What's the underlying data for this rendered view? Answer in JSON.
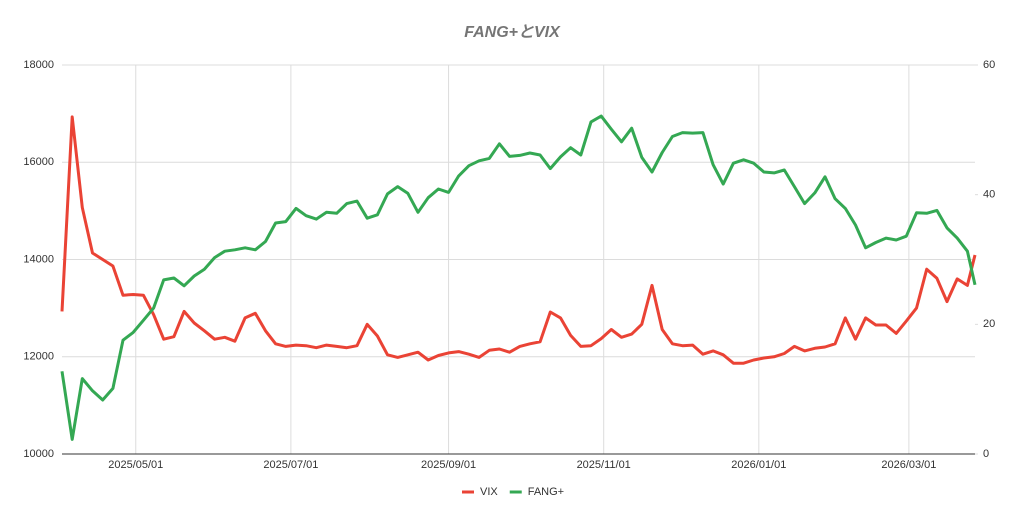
{
  "chart_data": {
    "type": "line",
    "title": "FANG+とVIX",
    "x": [
      "2025/04/02",
      "2025/04/06",
      "2025/04/10",
      "2025/04/14",
      "2025/04/18",
      "2025/04/22",
      "2025/04/26",
      "2025/04/30",
      "2025/05/04",
      "2025/05/08",
      "2025/05/12",
      "2025/05/16",
      "2025/05/20",
      "2025/05/24",
      "2025/05/28",
      "2025/06/01",
      "2025/06/05",
      "2025/06/09",
      "2025/06/13",
      "2025/06/17",
      "2025/06/21",
      "2025/06/25",
      "2025/06/29",
      "2025/07/03",
      "2025/07/07",
      "2025/07/11",
      "2025/07/15",
      "2025/07/19",
      "2025/07/23",
      "2025/07/27",
      "2025/07/31",
      "2025/08/04",
      "2025/08/08",
      "2025/08/12",
      "2025/08/16",
      "2025/08/20",
      "2025/08/24",
      "2025/08/28",
      "2025/09/01",
      "2025/09/05",
      "2025/09/09",
      "2025/09/13",
      "2025/09/17",
      "2025/09/21",
      "2025/09/25",
      "2025/09/29",
      "2025/10/03",
      "2025/10/07",
      "2025/10/11",
      "2025/10/15",
      "2025/10/19",
      "2025/10/23",
      "2025/10/27",
      "2025/10/31",
      "2025/11/04",
      "2025/11/08",
      "2025/11/12",
      "2025/11/16",
      "2025/11/20",
      "2025/11/24",
      "2025/11/28",
      "2025/12/02",
      "2025/12/06",
      "2025/12/10",
      "2025/12/14",
      "2025/12/18",
      "2025/12/22",
      "2025/12/26",
      "2025/12/30",
      "2026/01/03",
      "2026/01/07",
      "2026/01/11",
      "2026/01/15",
      "2026/01/19",
      "2026/01/23",
      "2026/01/27",
      "2026/01/31",
      "2026/02/04",
      "2026/02/08",
      "2026/02/12",
      "2026/02/16",
      "2026/02/20",
      "2026/02/24",
      "2026/02/28",
      "2026/03/04",
      "2026/03/08",
      "2026/03/12",
      "2026/03/16",
      "2026/03/20",
      "2026/03/24",
      "2026/03/27"
    ],
    "series": [
      {
        "name": "VIX",
        "color": "#ea4335",
        "axis": "y2",
        "values": [
          22,
          52,
          38,
          31,
          30,
          29,
          24.5,
          24.6,
          24.5,
          21.5,
          17.7,
          18.1,
          22,
          20.2,
          19,
          17.7,
          18,
          17.4,
          21,
          21.7,
          19,
          17,
          16.6,
          16.8,
          16.7,
          16.4,
          16.8,
          16.6,
          16.4,
          16.7,
          20,
          18.2,
          15.3,
          14.9,
          15.3,
          15.7,
          14.5,
          15.2,
          15.6,
          15.8,
          15.4,
          14.9,
          16,
          16.2,
          15.7,
          16.6,
          17,
          17.3,
          21.9,
          21,
          18.3,
          16.6,
          16.7,
          17.8,
          19.2,
          18,
          18.5,
          20,
          26,
          19.2,
          17,
          16.7,
          16.8,
          15.4,
          15.9,
          15.3,
          14,
          14,
          14.5,
          14.8,
          15,
          15.5,
          16.6,
          15.9,
          16.3,
          16.5,
          17,
          21,
          17.7,
          21,
          19.9,
          19.9,
          18.6,
          20.5,
          22.5,
          28.5,
          27.1,
          23.5,
          27,
          26,
          30.7
        ]
      },
      {
        "name": "FANG+",
        "color": "#34a853",
        "values": [
          11700,
          10300,
          11550,
          11300,
          11110,
          11350,
          12340,
          12500,
          12750,
          13000,
          13580,
          13620,
          13460,
          13660,
          13800,
          14040,
          14170,
          14200,
          14240,
          14200,
          14370,
          14750,
          14780,
          15050,
          14900,
          14830,
          14970,
          14950,
          15150,
          15200,
          14850,
          14920,
          15350,
          15500,
          15360,
          14970,
          15270,
          15450,
          15380,
          15720,
          15930,
          16030,
          16080,
          16380,
          16120,
          16140,
          16190,
          16150,
          15870,
          16110,
          16300,
          16150,
          16830,
          16950,
          16680,
          16420,
          16700,
          16100,
          15800,
          16200,
          16530,
          16610,
          16600,
          16610,
          15950,
          15550,
          15980,
          16050,
          15980,
          15800,
          15780,
          15840,
          15500,
          15150,
          15370,
          15700,
          15250,
          15050,
          14710,
          14240,
          14350,
          14440,
          14400,
          14480,
          14960,
          14950,
          15010,
          14650,
          14440,
          14170,
          13480
        ]
      }
    ],
    "xlim": [
      "2025/04/02",
      "2026/03/27"
    ],
    "xticks": [
      "2025/05/01",
      "2025/07/01",
      "2025/09/01",
      "2025/11/01",
      "2026/01/01",
      "2026/03/01"
    ],
    "ylim": [
      10000,
      18000
    ],
    "yticks": [
      10000,
      12000,
      14000,
      16000,
      18000
    ],
    "y2lim": [
      0,
      60
    ],
    "y2ticks": [
      0,
      20,
      40,
      60
    ],
    "grid": true,
    "legend": "bottom"
  }
}
